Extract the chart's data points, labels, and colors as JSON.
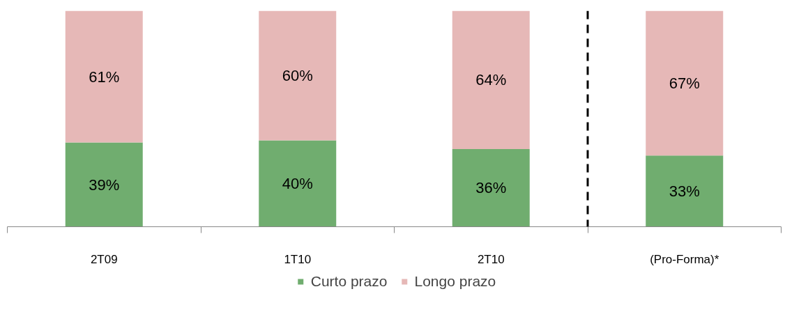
{
  "chart_data": {
    "type": "bar",
    "stacked": true,
    "categories": [
      "2T09",
      "1T10",
      "2T10",
      "(Pro-Forma)*"
    ],
    "series": [
      {
        "name": "Curto prazo",
        "color": "#70ad6f",
        "values": [
          39,
          40,
          36,
          33
        ],
        "value_labels": [
          "39%",
          "40%",
          "36%",
          "33%"
        ]
      },
      {
        "name": "Longo prazo",
        "color": "#e6b8b7",
        "values": [
          61,
          60,
          64,
          67
        ],
        "value_labels": [
          "61%",
          "60%",
          "64%",
          "67%"
        ]
      }
    ],
    "tick_labels": "x",
    "legend": "bottom"
  }
}
